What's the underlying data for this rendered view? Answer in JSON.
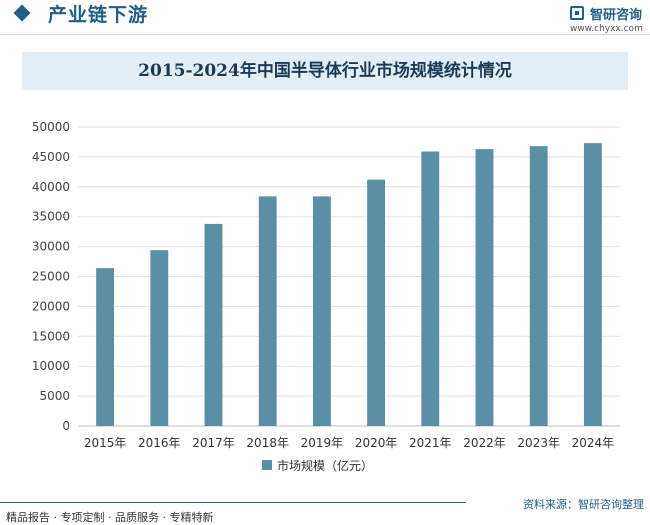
{
  "header": {
    "section_title": "产业链下游",
    "logo_name": "智研咨询",
    "logo_url": "www.chyxx.com"
  },
  "chart_data": {
    "type": "bar",
    "title": "2015-2024年中国半导体行业市场规模统计情况",
    "categories": [
      "2015年",
      "2016年",
      "2017年",
      "2018年",
      "2019年",
      "2020年",
      "2021年",
      "2022年",
      "2023年",
      "2024年"
    ],
    "series": [
      {
        "name": "市场规模（亿元）",
        "values": [
          26400,
          29400,
          33800,
          38400,
          38400,
          41200,
          45900,
          46300,
          46800,
          47300
        ]
      }
    ],
    "ylim": [
      0,
      50000
    ],
    "yticks": [
      0,
      5000,
      10000,
      15000,
      20000,
      25000,
      30000,
      35000,
      40000,
      45000,
      50000
    ],
    "grid": true,
    "legend_position": "bottom",
    "bar_color": "#5b8fa6"
  },
  "footer": {
    "tags": "精品报告 · 专项定制 · 品质服务 · 专精特新",
    "source": "资料来源：智研咨询整理"
  }
}
